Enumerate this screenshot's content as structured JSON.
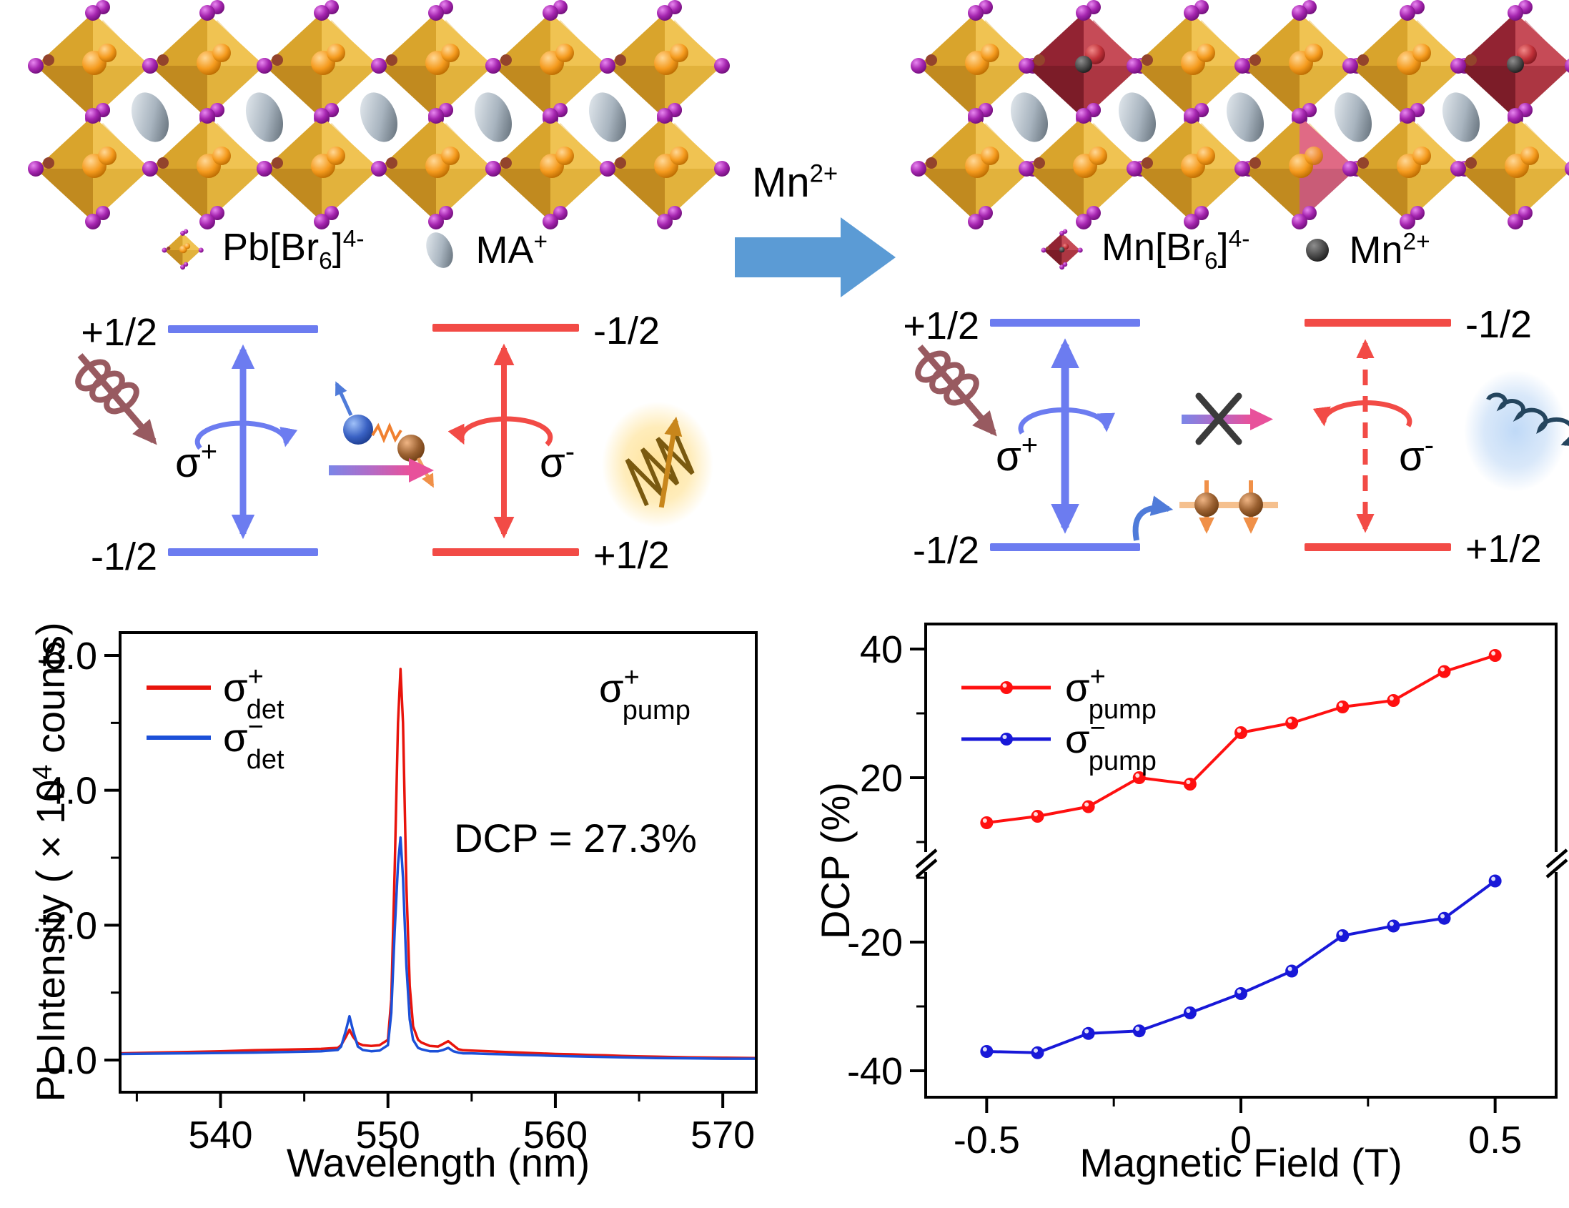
{
  "crystal_left": {
    "legend": [
      {
        "icon": "gold-octahedron-icon",
        "label_pre": "Pb[Br",
        "label_sub": "6",
        "label_post": "]",
        "label_sup": "4-"
      },
      {
        "icon": "gray-ellipsoid-icon",
        "label_base": "MA",
        "label_sup": "+"
      }
    ]
  },
  "crystal_right": {
    "legend": [
      {
        "icon": "red-octahedron-icon",
        "label_pre": "Mn[Br",
        "label_sub": "6",
        "label_post": "]",
        "label_sup": "4-"
      },
      {
        "icon": "black-sphere-icon",
        "label_base": "Mn",
        "label_sup": "2+"
      }
    ]
  },
  "transfer_arrow": {
    "label_base": "Mn",
    "label_sup": "2+",
    "color": "#5B9BD5"
  },
  "diagram_left": {
    "top_left_level": "+1/2",
    "top_right_level": "-1/2",
    "bottom_left_level": "-1/2",
    "bottom_right_level": "+1/2",
    "sigma_plus_base": "σ",
    "sigma_plus_sup": "+",
    "sigma_minus_base": "σ",
    "sigma_minus_sup": "-",
    "blue": "#6C7CF0",
    "red": "#F24B46"
  },
  "diagram_right": {
    "top_left_level": "+1/2",
    "top_right_level": "-1/2",
    "bottom_left_level": "-1/2",
    "bottom_right_level": "+1/2",
    "sigma_plus_base": "σ",
    "sigma_plus_sup": "+",
    "sigma_minus_base": "σ",
    "sigma_minus_sup": "-",
    "blue": "#6C7CF0",
    "red": "#F24B46"
  },
  "chart_data": [
    {
      "type": "line",
      "title": "",
      "xlabel": "Wavelength (nm)",
      "ylabel": "PL Intensity ( × 10⁴ counts)",
      "ylabel_parts": {
        "pre": "PL Intensity ( × 10",
        "sup": "4",
        "post": " counts)"
      },
      "xlim": [
        534,
        572
      ],
      "ylim": [
        -0.45,
        6.35
      ],
      "grid": false,
      "xticks": {
        "major": [
          540,
          550,
          560,
          570
        ],
        "labels": [
          "540",
          "550",
          "560",
          "570"
        ],
        "minor": [
          535,
          545,
          555,
          565
        ]
      },
      "yticks": {
        "major": [
          0,
          2,
          4,
          6
        ],
        "labels": [
          "0.0",
          "2.0",
          "4.0",
          "6.0"
        ],
        "minor": [
          1,
          3,
          5
        ]
      },
      "legend_position": "top-left",
      "legend": [
        {
          "base": "σ",
          "sup": "+",
          "sub": "det",
          "color": "#E8140C"
        },
        {
          "base": "σ",
          "sup": "−",
          "sub": "det",
          "color": "#1C50D8"
        }
      ],
      "annotations": {
        "pump_base": "σ",
        "pump_sup": "+",
        "pump_sub": "pump",
        "dcp": "DCP = 27.3%"
      },
      "series": [
        {
          "name": "sigma_plus_det",
          "color": "#E8140C",
          "points": [
            [
              534,
              0.1
            ],
            [
              535,
              0.105
            ],
            [
              536,
              0.11
            ],
            [
              538,
              0.12
            ],
            [
              540,
              0.13
            ],
            [
              542,
              0.145
            ],
            [
              544,
              0.155
            ],
            [
              545,
              0.16
            ],
            [
              546,
              0.165
            ],
            [
              547,
              0.18
            ],
            [
              547.2,
              0.22
            ],
            [
              547.5,
              0.35
            ],
            [
              547.7,
              0.45
            ],
            [
              547.9,
              0.35
            ],
            [
              548.2,
              0.25
            ],
            [
              548.5,
              0.22
            ],
            [
              549,
              0.21
            ],
            [
              549.5,
              0.22
            ],
            [
              550,
              0.3
            ],
            [
              550.2,
              0.9
            ],
            [
              550.4,
              2.8
            ],
            [
              550.6,
              5.0
            ],
            [
              550.75,
              5.8
            ],
            [
              550.9,
              5.0
            ],
            [
              551.1,
              2.6
            ],
            [
              551.3,
              1.1
            ],
            [
              551.5,
              0.5
            ],
            [
              551.8,
              0.3
            ],
            [
              552,
              0.26
            ],
            [
              552.5,
              0.21
            ],
            [
              553,
              0.2
            ],
            [
              553.3,
              0.24
            ],
            [
              553.6,
              0.28
            ],
            [
              553.9,
              0.22
            ],
            [
              554.2,
              0.16
            ],
            [
              554.5,
              0.145
            ],
            [
              555,
              0.14
            ],
            [
              556,
              0.13
            ],
            [
              557,
              0.12
            ],
            [
              558,
              0.11
            ],
            [
              559,
              0.1
            ],
            [
              560,
              0.09
            ],
            [
              561,
              0.085
            ],
            [
              562,
              0.075
            ],
            [
              563,
              0.07
            ],
            [
              564,
              0.06
            ],
            [
              566,
              0.05
            ],
            [
              568,
              0.04
            ],
            [
              570,
              0.035
            ],
            [
              572,
              0.03
            ]
          ]
        },
        {
          "name": "sigma_minus_det",
          "color": "#1C50D8",
          "points": [
            [
              534,
              0.09
            ],
            [
              535,
              0.092
            ],
            [
              536,
              0.095
            ],
            [
              538,
              0.1
            ],
            [
              540,
              0.105
            ],
            [
              542,
              0.11
            ],
            [
              544,
              0.12
            ],
            [
              545,
              0.125
            ],
            [
              546,
              0.13
            ],
            [
              547,
              0.15
            ],
            [
              547.2,
              0.2
            ],
            [
              547.5,
              0.45
            ],
            [
              547.7,
              0.65
            ],
            [
              547.9,
              0.45
            ],
            [
              548.2,
              0.2
            ],
            [
              548.5,
              0.15
            ],
            [
              549,
              0.13
            ],
            [
              549.5,
              0.14
            ],
            [
              550,
              0.22
            ],
            [
              550.2,
              0.7
            ],
            [
              550.4,
              1.9
            ],
            [
              550.6,
              2.9
            ],
            [
              550.75,
              3.3
            ],
            [
              550.9,
              2.7
            ],
            [
              551.1,
              1.4
            ],
            [
              551.3,
              0.6
            ],
            [
              551.5,
              0.3
            ],
            [
              551.8,
              0.18
            ],
            [
              552,
              0.16
            ],
            [
              552.5,
              0.13
            ],
            [
              553,
              0.13
            ],
            [
              553.3,
              0.15
            ],
            [
              553.6,
              0.18
            ],
            [
              553.9,
              0.13
            ],
            [
              554.2,
              0.11
            ],
            [
              554.5,
              0.1
            ],
            [
              555,
              0.1
            ],
            [
              556,
              0.09
            ],
            [
              557,
              0.085
            ],
            [
              558,
              0.075
            ],
            [
              559,
              0.07
            ],
            [
              560,
              0.06
            ],
            [
              561,
              0.055
            ],
            [
              562,
              0.05
            ],
            [
              563,
              0.045
            ],
            [
              564,
              0.04
            ],
            [
              566,
              0.03
            ],
            [
              568,
              0.025
            ],
            [
              570,
              0.02
            ],
            [
              572,
              0.02
            ]
          ]
        }
      ]
    },
    {
      "type": "line",
      "title": "",
      "xlabel": "Magnetic Field (T)",
      "ylabel": "DCP (%)",
      "xlim": [
        -0.62,
        0.62
      ],
      "axis_break": {
        "axis": "y",
        "between": [
          -8,
          8
        ]
      },
      "grid": false,
      "xticks": {
        "major": [
          -0.5,
          0,
          0.5
        ],
        "labels": [
          "-0.5",
          "0",
          "0.5"
        ],
        "minor": [
          -0.25,
          0.25
        ]
      },
      "yticks_top": {
        "major": [
          20,
          40
        ],
        "labels": [
          "20",
          "40"
        ],
        "minor": [
          10,
          30
        ]
      },
      "yticks_bottom": {
        "major": [
          -40,
          -20
        ],
        "labels": [
          "-40",
          "-20"
        ],
        "minor": [
          -30,
          -10
        ]
      },
      "legend_position": "top-left",
      "legend": [
        {
          "base": "σ",
          "sup": "+",
          "sub": "pump",
          "color": "#FF1010"
        },
        {
          "base": "σ",
          "sup": "−",
          "sub": "pump",
          "color": "#1818D8"
        }
      ],
      "x": [
        -0.5,
        -0.4,
        -0.3,
        -0.2,
        -0.1,
        0,
        0.1,
        0.2,
        0.3,
        0.4,
        0.5
      ],
      "series": [
        {
          "name": "sigma_plus_pump",
          "color": "#FF1010",
          "values": [
            13,
            14,
            15.5,
            20,
            19,
            27,
            28.5,
            31,
            32,
            36.5,
            39
          ]
        },
        {
          "name": "sigma_minus_pump",
          "color": "#1818D8",
          "values": [
            -37,
            -37.2,
            -34.2,
            -33.8,
            -31,
            -28,
            -24.5,
            -19,
            -17.5,
            -16.3,
            -10.5
          ]
        }
      ]
    }
  ]
}
